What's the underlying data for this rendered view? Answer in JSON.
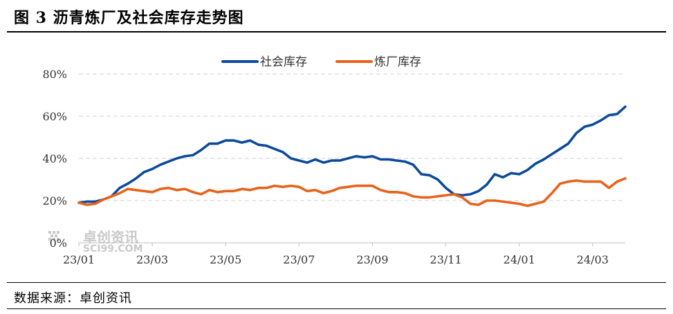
{
  "header": {
    "title": "图 3 沥青炼厂及社会库存走势图"
  },
  "footer": {
    "source": "数据来源：卓创资讯"
  },
  "watermark": {
    "name": "卓创资讯",
    "site": "SCI99.COM"
  },
  "colors": {
    "series1": "#0b4a9c",
    "series2": "#e8621a",
    "grid": "#d0d0d0",
    "axis": "#bfbfbf"
  },
  "chart_data": {
    "type": "line",
    "legend_position": "top-center",
    "grid": true,
    "ylim": [
      0,
      80
    ],
    "yticks": [
      "0%",
      "20%",
      "40%",
      "60%",
      "80%"
    ],
    "ytick_values": [
      0,
      20,
      40,
      60,
      80
    ],
    "xticks": [
      "23/01",
      "23/03",
      "23/05",
      "23/07",
      "23/09",
      "23/11",
      "24/01",
      "24/03"
    ],
    "xtick_index": [
      0,
      9,
      18,
      27,
      36,
      45,
      54,
      63
    ],
    "series": [
      {
        "name": "社会库存",
        "values": [
          19,
          19.5,
          19.5,
          20.5,
          22,
          26,
          28,
          30.5,
          33.5,
          35,
          37,
          38.5,
          40,
          41,
          41.5,
          44,
          47,
          47,
          48.5,
          48.5,
          47.5,
          48.5,
          46.5,
          46,
          44.5,
          43,
          40,
          39,
          38,
          39.5,
          38,
          39,
          39,
          40,
          41,
          40.5,
          41,
          39.5,
          39.5,
          39,
          38.5,
          37,
          32.5,
          32,
          30,
          26,
          23,
          22.5,
          23,
          24.5,
          27.5,
          32.5,
          31,
          33,
          32.5,
          34.5,
          37.5,
          39.5,
          42,
          44.5,
          47,
          52,
          55,
          56,
          58,
          60.5,
          61,
          64.5
        ]
      },
      {
        "name": "炼厂库存",
        "values": [
          19,
          18,
          18.5,
          20.5,
          22,
          23.5,
          25.5,
          25,
          24.5,
          24,
          25.5,
          26,
          25,
          25.5,
          24,
          23,
          25,
          24,
          24.5,
          24.5,
          25.5,
          25,
          26,
          26,
          27,
          26.5,
          27,
          26.5,
          24.5,
          25,
          23.5,
          24.5,
          26,
          26.5,
          27,
          27,
          27,
          25,
          24,
          24,
          23.5,
          22,
          21.5,
          21.5,
          22,
          22.5,
          23,
          21.5,
          18.5,
          18,
          20,
          20,
          19.5,
          19,
          18.5,
          17.5,
          18.5,
          19.5,
          23.5,
          28,
          29,
          29.5,
          29,
          29,
          29,
          26,
          29,
          30.5
        ]
      }
    ]
  }
}
